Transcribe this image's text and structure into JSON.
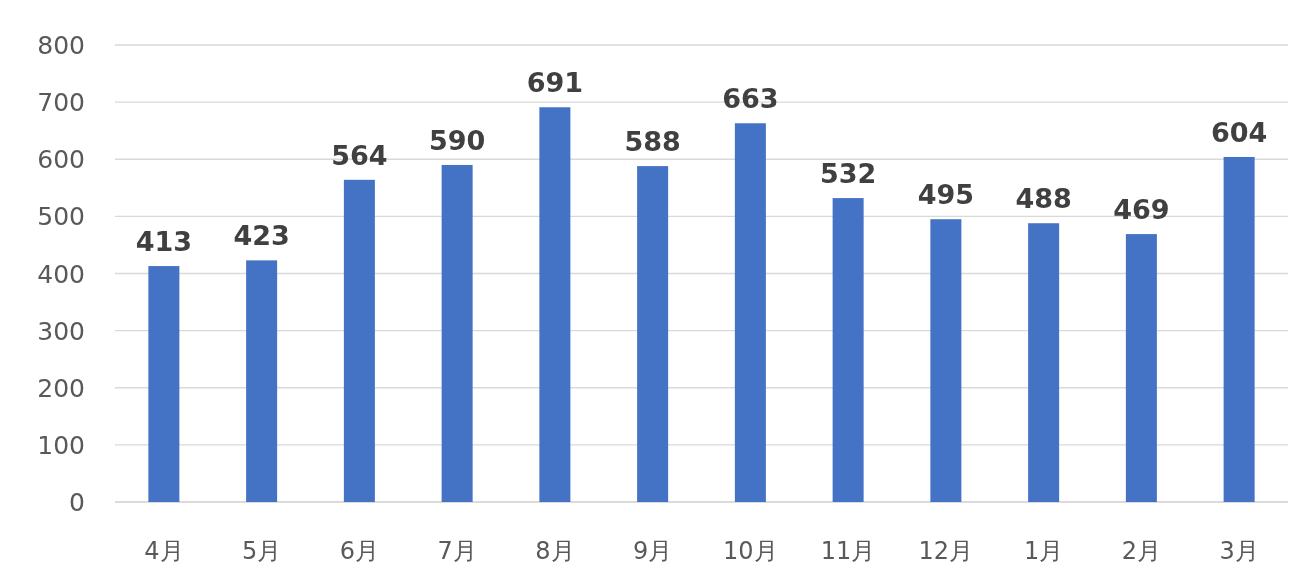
{
  "chart_data": {
    "type": "bar",
    "categories": [
      "4月",
      "5月",
      "6月",
      "7月",
      "8月",
      "9月",
      "10月",
      "11月",
      "12月",
      "1月",
      "2月",
      "3月"
    ],
    "values": [
      413,
      423,
      564,
      590,
      691,
      588,
      663,
      532,
      495,
      488,
      469,
      604
    ],
    "color": "#4472c4",
    "ylim": [
      0,
      800
    ],
    "yticks": [
      0,
      100,
      200,
      300,
      400,
      500,
      600,
      700,
      800
    ],
    "grid": "y",
    "data_labels": true
  }
}
